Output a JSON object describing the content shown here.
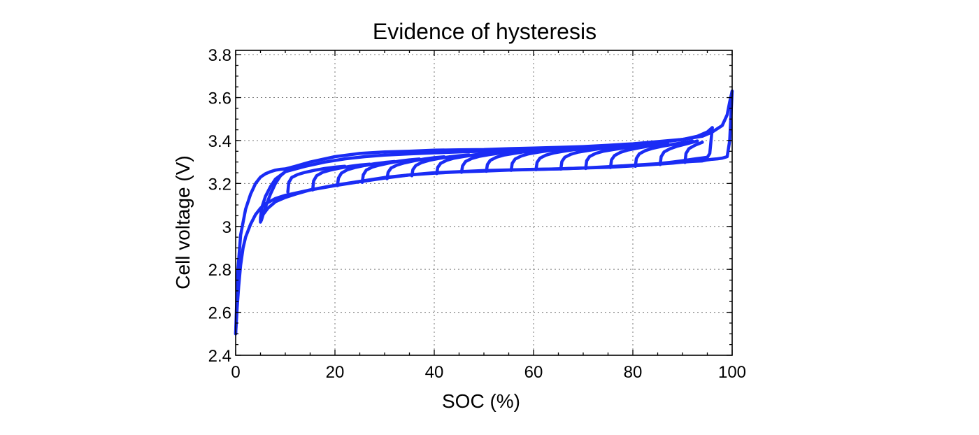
{
  "chart_data": {
    "type": "line",
    "title": "Evidence of hysteresis",
    "xlabel": "SOC (%)",
    "ylabel": "Cell voltage (V)",
    "xlim": [
      0,
      100
    ],
    "ylim": [
      2.4,
      3.82
    ],
    "xticks": [
      0,
      20,
      40,
      60,
      80,
      100
    ],
    "xtick_labels": [
      "0",
      "20",
      "40",
      "60",
      "80",
      "100"
    ],
    "yticks": [
      2.4,
      2.6,
      2.8,
      3.0,
      3.2,
      3.4,
      3.6,
      3.8
    ],
    "ytick_labels": [
      "2.4",
      "2.6",
      "2.8",
      "3",
      "3.2",
      "3.4",
      "3.6",
      "3.8"
    ],
    "grid": true,
    "color": "#1a2cf5",
    "series": [
      {
        "x": [
          0,
          0.4,
          1,
          2,
          3,
          4,
          5,
          6,
          7,
          8,
          9,
          10,
          12,
          15,
          20,
          25,
          30,
          35,
          40,
          45,
          50,
          55,
          60,
          65,
          70,
          75,
          80,
          85,
          90,
          94,
          96,
          98,
          99,
          99.5,
          100
        ],
        "y": [
          2.5,
          2.78,
          2.96,
          3.08,
          3.15,
          3.2,
          3.23,
          3.245,
          3.255,
          3.262,
          3.266,
          3.268,
          3.28,
          3.3,
          3.325,
          3.34,
          3.347,
          3.35,
          3.355,
          3.357,
          3.358,
          3.362,
          3.365,
          3.368,
          3.372,
          3.378,
          3.385,
          3.395,
          3.405,
          3.42,
          3.44,
          3.47,
          3.52,
          3.58,
          3.63
        ]
      },
      {
        "x": [
          100,
          99.5,
          99,
          98,
          97,
          96,
          95,
          94,
          92,
          90,
          88,
          85,
          80,
          75,
          70,
          65,
          60,
          55,
          50,
          45,
          40,
          35,
          30,
          25,
          20,
          15,
          12,
          10,
          8,
          6,
          5,
          4,
          3,
          2,
          1.5,
          1,
          0.6,
          0.3,
          0
        ],
        "y": [
          3.63,
          3.4,
          3.325,
          3.318,
          3.315,
          3.313,
          3.31,
          3.305,
          3.303,
          3.3,
          3.295,
          3.29,
          3.282,
          3.275,
          3.272,
          3.268,
          3.266,
          3.263,
          3.26,
          3.255,
          3.25,
          3.24,
          3.225,
          3.208,
          3.19,
          3.17,
          3.155,
          3.145,
          3.13,
          3.105,
          3.085,
          3.055,
          3.01,
          2.95,
          2.9,
          2.82,
          2.72,
          2.62,
          2.5
        ]
      },
      {
        "x": [
          96,
          95.5,
          95,
          94,
          93,
          92,
          90,
          88,
          85,
          80,
          75,
          70,
          65,
          60,
          55,
          50,
          45,
          40,
          35,
          30,
          25,
          20,
          15,
          12,
          10,
          8,
          6.5,
          5.5,
          5,
          5,
          5.2,
          6,
          7,
          8,
          9,
          10
        ],
        "y": [
          3.46,
          3.34,
          3.322,
          3.319,
          3.316,
          3.313,
          3.306,
          3.3,
          3.292,
          3.285,
          3.278,
          3.272,
          3.268,
          3.265,
          3.262,
          3.258,
          3.254,
          3.248,
          3.24,
          3.228,
          3.21,
          3.192,
          3.17,
          3.15,
          3.135,
          3.115,
          3.085,
          3.055,
          3.035,
          3.02,
          3.03,
          3.09,
          3.15,
          3.2,
          3.235,
          3.255
        ]
      },
      {
        "x": [
          5,
          5.3,
          6,
          7,
          8,
          10,
          14,
          18,
          22,
          26,
          30,
          35,
          40,
          45,
          50,
          55,
          60,
          65,
          70,
          75,
          80,
          85,
          90,
          93,
          95,
          96
        ],
        "y": [
          3.04,
          3.09,
          3.14,
          3.185,
          3.22,
          3.255,
          3.28,
          3.3,
          3.315,
          3.325,
          3.332,
          3.338,
          3.343,
          3.347,
          3.35,
          3.353,
          3.356,
          3.36,
          3.364,
          3.37,
          3.378,
          3.39,
          3.405,
          3.42,
          3.44,
          3.46
        ]
      },
      {
        "x": [
          10.5,
          10.7,
          11.3,
          12.5,
          14,
          16,
          18,
          20,
          22
        ],
        "y": [
          3.16,
          3.205,
          3.228,
          3.242,
          3.252,
          3.262,
          3.27,
          3.276,
          3.28
        ]
      },
      {
        "x": [
          15.5,
          15.7,
          16.3,
          17.5,
          19,
          21,
          23,
          25,
          27
        ],
        "y": [
          3.17,
          3.212,
          3.236,
          3.252,
          3.262,
          3.272,
          3.28,
          3.286,
          3.29
        ]
      },
      {
        "x": [
          20.5,
          20.7,
          21.3,
          22.5,
          24,
          26,
          28,
          30,
          32
        ],
        "y": [
          3.19,
          3.225,
          3.248,
          3.264,
          3.274,
          3.284,
          3.292,
          3.298,
          3.302
        ]
      },
      {
        "x": [
          25.5,
          25.7,
          26.3,
          27.5,
          29,
          31,
          33,
          35,
          37
        ],
        "y": [
          3.205,
          3.24,
          3.262,
          3.276,
          3.286,
          3.296,
          3.304,
          3.31,
          3.314
        ]
      },
      {
        "x": [
          30.5,
          30.7,
          31.3,
          32.5,
          34,
          36,
          38,
          40,
          42
        ],
        "y": [
          3.222,
          3.252,
          3.272,
          3.286,
          3.296,
          3.306,
          3.314,
          3.32,
          3.324
        ]
      },
      {
        "x": [
          35.5,
          35.7,
          36.3,
          37.5,
          39,
          41,
          43,
          45,
          47
        ],
        "y": [
          3.236,
          3.265,
          3.284,
          3.298,
          3.308,
          3.317,
          3.324,
          3.329,
          3.333
        ]
      },
      {
        "x": [
          40.5,
          40.7,
          41.3,
          42.5,
          44,
          46,
          48,
          50,
          52
        ],
        "y": [
          3.246,
          3.275,
          3.294,
          3.308,
          3.318,
          3.326,
          3.333,
          3.338,
          3.342
        ]
      },
      {
        "x": [
          45.5,
          45.7,
          46.3,
          47.5,
          49,
          51,
          53,
          55,
          57
        ],
        "y": [
          3.252,
          3.282,
          3.302,
          3.316,
          3.326,
          3.334,
          3.341,
          3.346,
          3.35
        ]
      },
      {
        "x": [
          50.5,
          50.7,
          51.3,
          52.5,
          54,
          56,
          58,
          60,
          62
        ],
        "y": [
          3.257,
          3.288,
          3.308,
          3.322,
          3.332,
          3.34,
          3.347,
          3.352,
          3.356
        ]
      },
      {
        "x": [
          55.5,
          55.7,
          56.3,
          57.5,
          59,
          61,
          63,
          65,
          67
        ],
        "y": [
          3.261,
          3.294,
          3.314,
          3.328,
          3.338,
          3.346,
          3.353,
          3.358,
          3.362
        ]
      },
      {
        "x": [
          60.5,
          60.7,
          61.3,
          62.5,
          64,
          66,
          68,
          70,
          72
        ],
        "y": [
          3.264,
          3.298,
          3.318,
          3.332,
          3.342,
          3.35,
          3.357,
          3.362,
          3.366
        ]
      },
      {
        "x": [
          65.5,
          65.7,
          66.3,
          67.5,
          69,
          71,
          73,
          75,
          77
        ],
        "y": [
          3.267,
          3.302,
          3.322,
          3.336,
          3.346,
          3.354,
          3.361,
          3.366,
          3.371
        ]
      },
      {
        "x": [
          70.5,
          70.7,
          71.3,
          72.5,
          74,
          76,
          78,
          80,
          82
        ],
        "y": [
          3.27,
          3.306,
          3.326,
          3.34,
          3.35,
          3.358,
          3.365,
          3.371,
          3.377
        ]
      },
      {
        "x": [
          75.5,
          75.7,
          76.3,
          77.5,
          79,
          81,
          83,
          85,
          87
        ],
        "y": [
          3.274,
          3.31,
          3.33,
          3.345,
          3.356,
          3.365,
          3.373,
          3.38,
          3.387
        ]
      },
      {
        "x": [
          80.5,
          80.7,
          81.3,
          82.5,
          84,
          86,
          88,
          90,
          92
        ],
        "y": [
          3.28,
          3.316,
          3.338,
          3.353,
          3.364,
          3.374,
          3.382,
          3.39,
          3.398
        ]
      },
      {
        "x": [
          85.5,
          85.7,
          86.3,
          87.5,
          89,
          91,
          93
        ],
        "y": [
          3.288,
          3.325,
          3.347,
          3.362,
          3.374,
          3.386,
          3.398
        ]
      },
      {
        "x": [
          90.5,
          90.7,
          91.3,
          92.5,
          94
        ],
        "y": [
          3.298,
          3.34,
          3.362,
          3.378,
          3.392
        ]
      }
    ]
  }
}
